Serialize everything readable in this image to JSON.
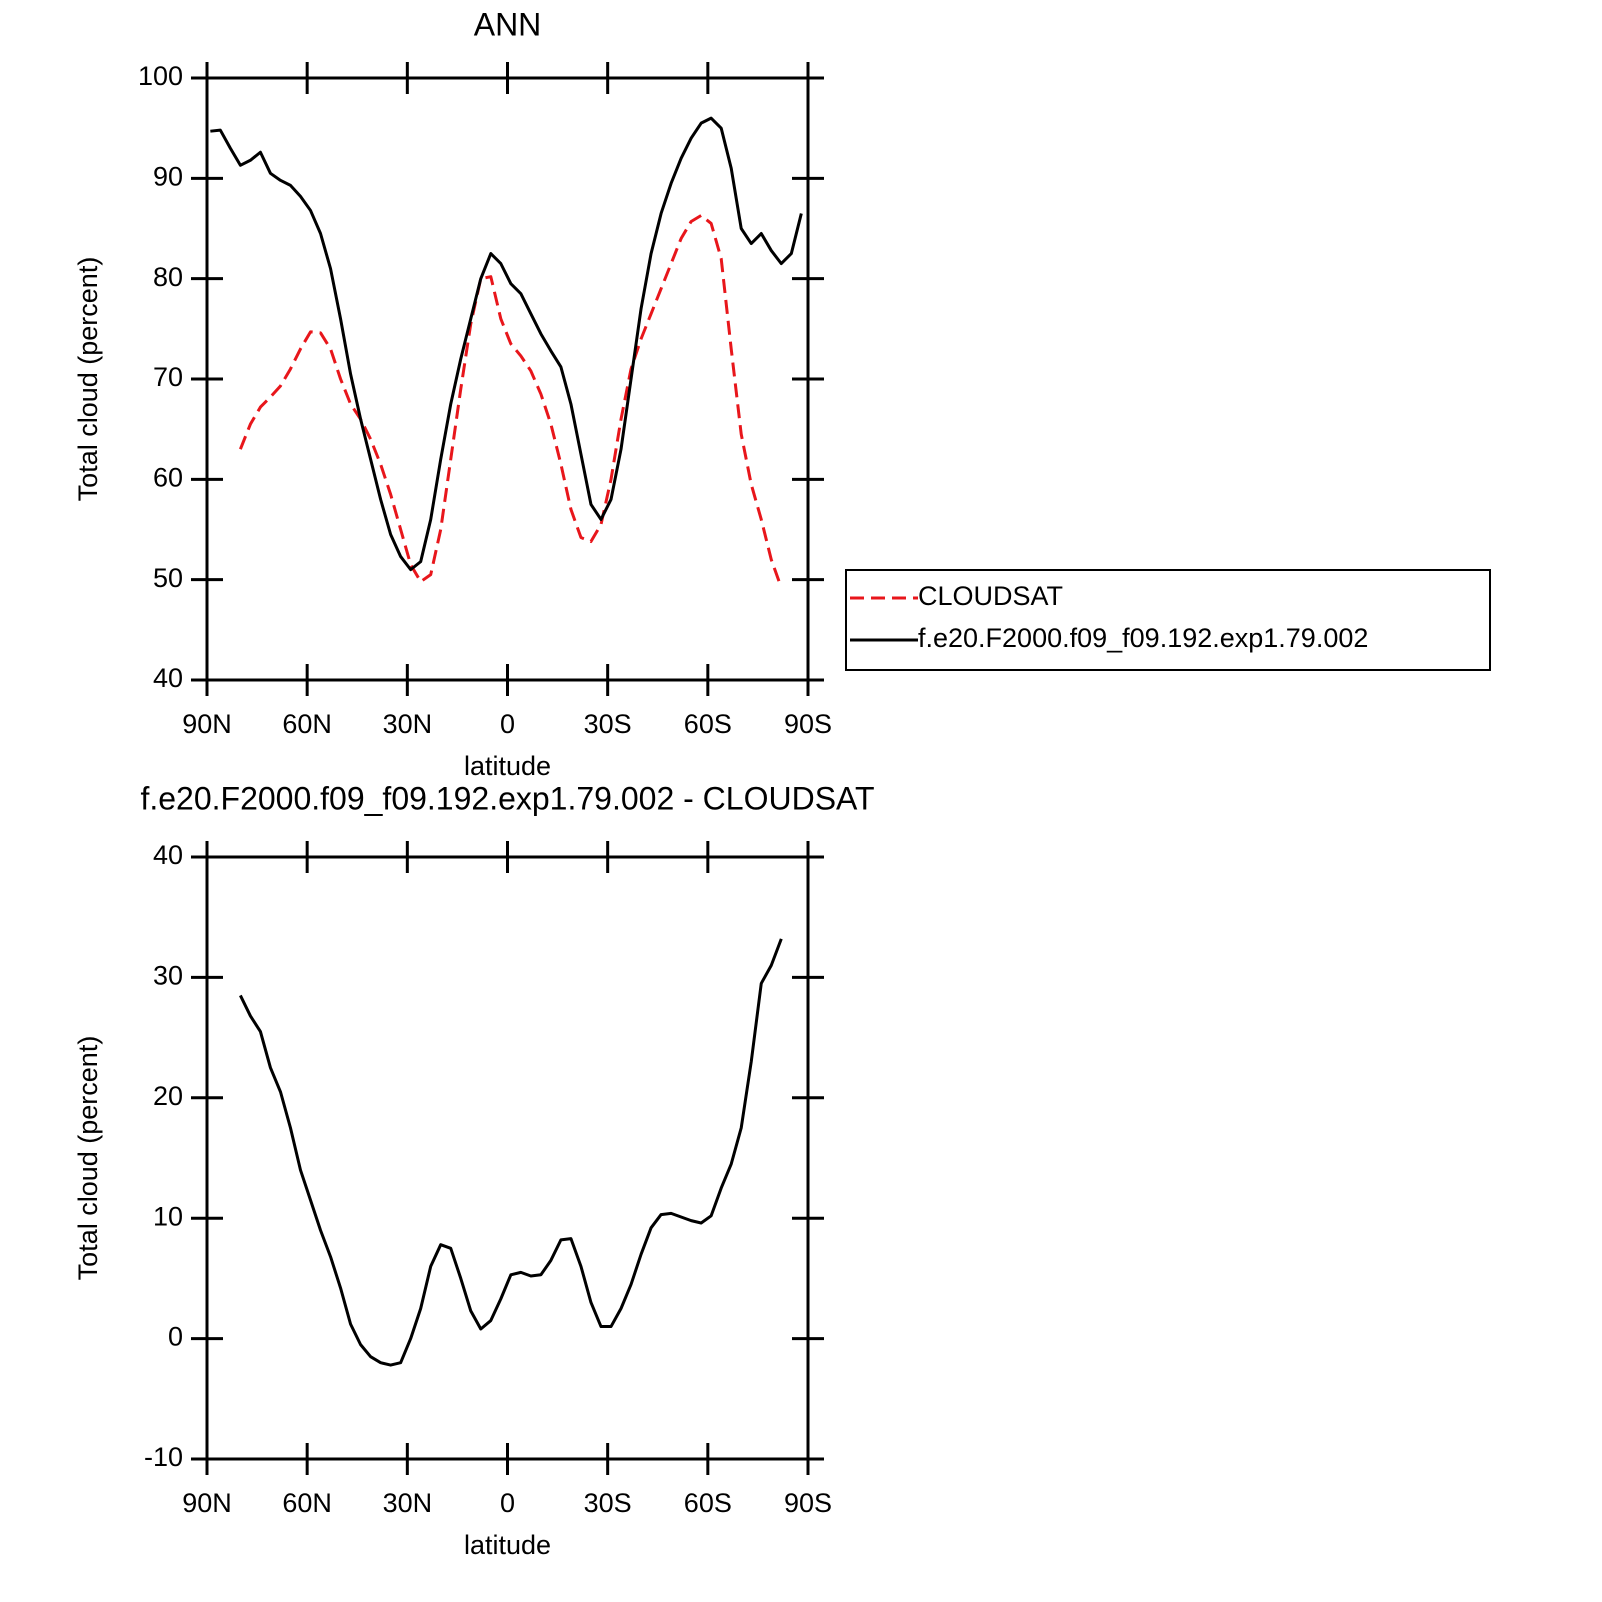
{
  "chart_data": [
    {
      "type": "line",
      "title": "ANN",
      "xlabel": "latitude",
      "ylabel": "Total cloud (percent)",
      "x": [
        89,
        86,
        83,
        80,
        77,
        74,
        71,
        68,
        65,
        62,
        59,
        56,
        53,
        50,
        47,
        44,
        41,
        38,
        35,
        32,
        29,
        26,
        23,
        20,
        17,
        14,
        11,
        8,
        5,
        2,
        -1,
        -4,
        -7,
        -10,
        -13,
        -16,
        -19,
        -22,
        -25,
        -28,
        -31,
        -34,
        -37,
        -40,
        -43,
        -46,
        -49,
        -52,
        -55,
        -58,
        -61,
        -64,
        -67,
        -70,
        -73,
        -76,
        -79,
        -82,
        -85,
        -88
      ],
      "xlim": [
        90,
        -90
      ],
      "xticks": [
        {
          "value": 90,
          "label": "90N"
        },
        {
          "value": 60,
          "label": "60N"
        },
        {
          "value": 30,
          "label": "30N"
        },
        0,
        {
          "value": -30,
          "label": "30S"
        },
        {
          "value": -60,
          "label": "60S"
        },
        {
          "value": -90,
          "label": "90S"
        }
      ],
      "ylim": [
        40,
        100
      ],
      "yticks": [
        40,
        50,
        60,
        70,
        80,
        90,
        100
      ],
      "legend": "right",
      "series": [
        {
          "name": "CLOUDSAT",
          "color": "#e8161b",
          "dash": "dashed",
          "values": [
            null,
            null,
            null,
            63,
            65.5,
            67.2,
            68.2,
            69.3,
            71,
            73,
            74.7,
            74.6,
            73,
            70,
            67.5,
            66,
            64,
            61.5,
            58.5,
            55,
            51.5,
            49.8,
            50.5,
            55,
            62,
            69,
            75.5,
            80,
            80.2,
            76,
            73.5,
            72.3,
            70.8,
            68.5,
            65.5,
            61.5,
            57,
            54.2,
            53.8,
            55.5,
            60,
            66,
            71,
            74,
            76.5,
            79,
            81.5,
            84,
            85.7,
            86.3,
            85.5,
            82,
            73,
            64.5,
            59.5,
            56,
            52,
            49.2,
            null,
            null
          ]
        },
        {
          "name": "f.e20.F2000.f09_f09.192.exp1.79.002",
          "color": "#000000",
          "dash": "solid",
          "values": [
            94.7,
            94.8,
            93,
            91.3,
            91.8,
            92.6,
            90.5,
            89.8,
            89.3,
            88.2,
            86.8,
            84.5,
            81,
            76,
            70.5,
            66,
            62,
            58,
            54.5,
            52.3,
            51,
            51.8,
            56,
            62,
            67.5,
            72,
            76,
            80,
            82.5,
            81.5,
            79.5,
            78.5,
            76.5,
            74.5,
            72.8,
            71.2,
            67.5,
            62.5,
            57.5,
            56,
            58,
            63,
            70,
            77,
            82.5,
            86.5,
            89.5,
            92,
            94,
            95.5,
            96,
            95,
            91,
            85,
            83.5,
            84.5,
            82.8,
            81.5,
            82.5,
            86.5
          ]
        }
      ]
    },
    {
      "type": "line",
      "title": "f.e20.F2000.f09_f09.192.exp1.79.002 - CLOUDSAT",
      "xlabel": "latitude",
      "ylabel": "Total cloud (percent)",
      "x": [
        89,
        86,
        83,
        80,
        77,
        74,
        71,
        68,
        65,
        62,
        59,
        56,
        53,
        50,
        47,
        44,
        41,
        38,
        35,
        32,
        29,
        26,
        23,
        20,
        17,
        14,
        11,
        8,
        5,
        2,
        -1,
        -4,
        -7,
        -10,
        -13,
        -16,
        -19,
        -22,
        -25,
        -28,
        -31,
        -34,
        -37,
        -40,
        -43,
        -46,
        -49,
        -52,
        -55,
        -58,
        -61,
        -64,
        -67,
        -70,
        -73,
        -76,
        -79,
        -82,
        -85,
        -88
      ],
      "xlim": [
        90,
        -90
      ],
      "xticks": [
        {
          "value": 90,
          "label": "90N"
        },
        {
          "value": 60,
          "label": "60N"
        },
        {
          "value": 30,
          "label": "30N"
        },
        0,
        {
          "value": -30,
          "label": "30S"
        },
        {
          "value": -60,
          "label": "60S"
        },
        {
          "value": -90,
          "label": "90S"
        }
      ],
      "ylim": [
        -10,
        40
      ],
      "yticks": [
        -10,
        0,
        10,
        20,
        30,
        40
      ],
      "series": [
        {
          "color": "#000000",
          "dash": "solid",
          "values": [
            null,
            null,
            null,
            28.5,
            26.8,
            25.5,
            22.5,
            20.5,
            17.5,
            14,
            11.5,
            9,
            6.8,
            4.2,
            1.2,
            -0.5,
            -1.5,
            -2,
            -2.2,
            -2,
            0,
            2.5,
            6,
            7.8,
            7.5,
            5,
            2.3,
            0.8,
            1.5,
            3.3,
            5.3,
            5.5,
            5.2,
            5.3,
            6.5,
            8.2,
            8.3,
            6,
            3,
            1,
            1,
            2.5,
            4.5,
            7,
            9.2,
            10.3,
            10.4,
            10.1,
            9.8,
            9.6,
            10.2,
            12.5,
            14.5,
            17.5,
            23,
            29.5,
            31,
            33.2,
            null,
            null
          ]
        }
      ]
    }
  ]
}
